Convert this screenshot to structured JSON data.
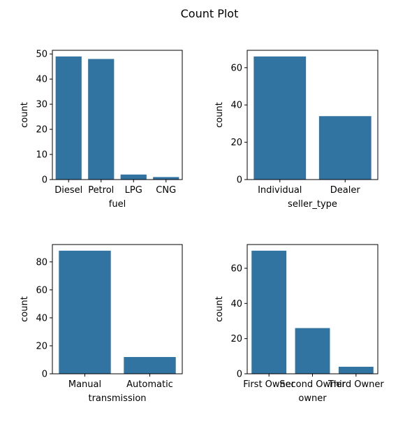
{
  "figure": {
    "title": "Count Plot"
  },
  "colors": {
    "bar": "#3274a1",
    "axis": "#000000",
    "background": "#ffffff"
  },
  "chart_data": [
    {
      "type": "bar",
      "categories": [
        "Diesel",
        "Petrol",
        "LPG",
        "CNG"
      ],
      "values": [
        49,
        48,
        2,
        1
      ],
      "xlabel": "fuel",
      "ylabel": "count",
      "ylim": [
        0,
        51.45
      ],
      "yticks": [
        0,
        10,
        20,
        30,
        40,
        50
      ]
    },
    {
      "type": "bar",
      "categories": [
        "Individual",
        "Dealer"
      ],
      "values": [
        66,
        34
      ],
      "xlabel": "seller_type",
      "ylabel": "count",
      "ylim": [
        0,
        69.3
      ],
      "yticks": [
        0,
        20,
        40,
        60
      ]
    },
    {
      "type": "bar",
      "categories": [
        "Manual",
        "Automatic"
      ],
      "values": [
        88,
        12
      ],
      "xlabel": "transmission",
      "ylabel": "count",
      "ylim": [
        0,
        92.4
      ],
      "yticks": [
        0,
        20,
        40,
        60,
        80
      ]
    },
    {
      "type": "bar",
      "categories": [
        "First Owner",
        "Second Owner",
        "Third Owner"
      ],
      "values": [
        70,
        26,
        4
      ],
      "xlabel": "owner",
      "ylabel": "count",
      "ylim": [
        0,
        73.5
      ],
      "yticks": [
        0,
        20,
        40,
        60
      ]
    }
  ]
}
